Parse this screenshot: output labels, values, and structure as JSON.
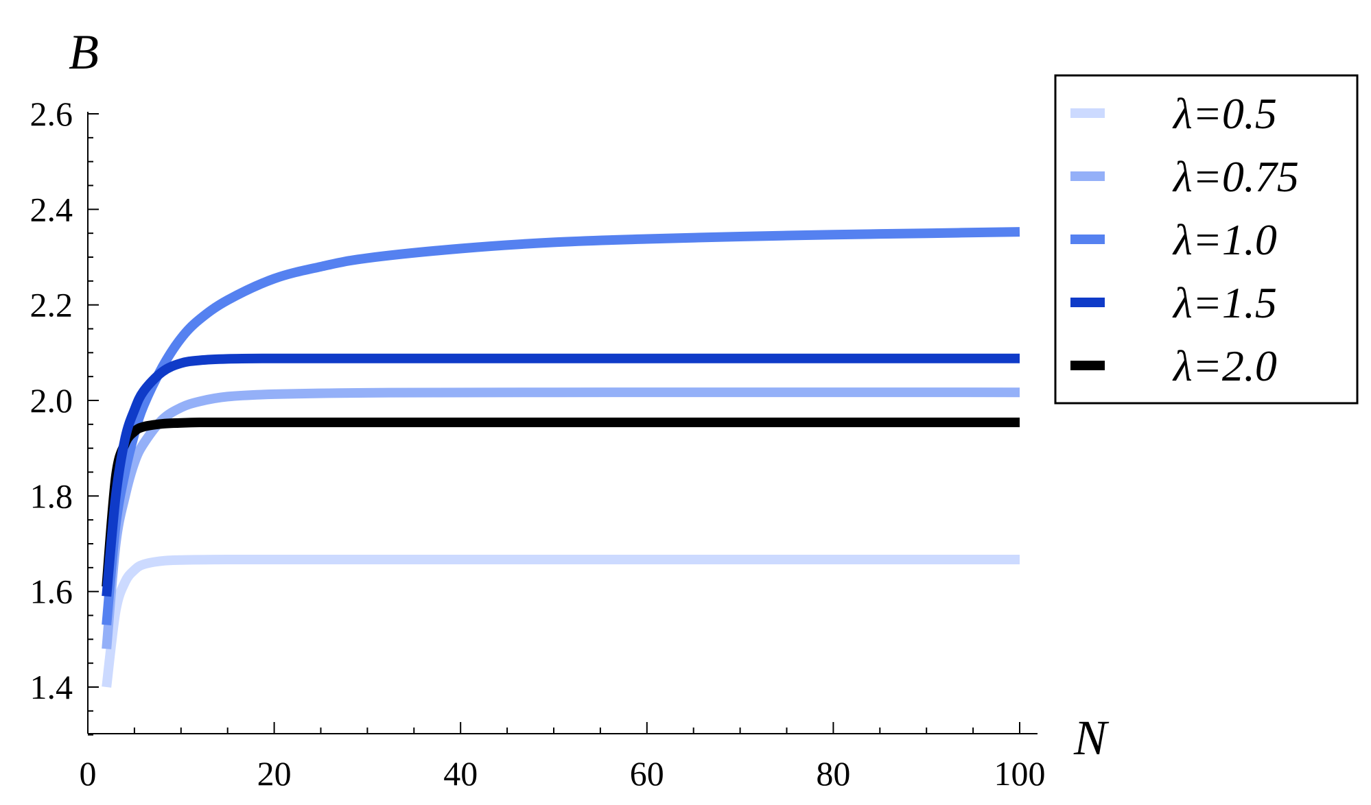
{
  "chart_data": {
    "type": "line",
    "title": "",
    "xlabel": "N",
    "ylabel": "B",
    "xlim": [
      0,
      102
    ],
    "ylim": [
      1.3,
      2.62
    ],
    "x_ticks": [
      "0",
      "20",
      "40",
      "60",
      "80",
      "100"
    ],
    "y_ticks": [
      "1.4",
      "1.6",
      "1.8",
      "2.0",
      "2.2",
      "2.4",
      "2.6"
    ],
    "grid": false,
    "legend_position": "top-right",
    "series": [
      {
        "name": "λ=0.5",
        "color": "#ccdaff",
        "x": [
          2,
          3,
          4,
          5,
          6,
          8,
          10,
          15,
          20,
          30,
          50,
          100
        ],
        "y": [
          1.4,
          1.56,
          1.62,
          1.645,
          1.657,
          1.664,
          1.666,
          1.667,
          1.667,
          1.667,
          1.667,
          1.667
        ]
      },
      {
        "name": "λ=0.75",
        "color": "#94b0f8",
        "x": [
          2,
          3,
          4,
          5,
          6,
          8,
          10,
          12,
          15,
          20,
          30,
          50,
          100
        ],
        "y": [
          1.48,
          1.7,
          1.8,
          1.87,
          1.91,
          1.96,
          1.985,
          1.998,
          2.008,
          2.013,
          2.016,
          2.017,
          2.017
        ]
      },
      {
        "name": "λ=1.0",
        "color": "#5581f0",
        "x": [
          2,
          3,
          4,
          5,
          6,
          8,
          10,
          12,
          15,
          20,
          25,
          30,
          40,
          50,
          60,
          70,
          80,
          90,
          100
        ],
        "y": [
          1.53,
          1.74,
          1.85,
          1.93,
          1.99,
          2.07,
          2.13,
          2.17,
          2.21,
          2.255,
          2.28,
          2.298,
          2.318,
          2.331,
          2.338,
          2.343,
          2.347,
          2.35,
          2.353
        ]
      },
      {
        "name": "λ=1.5",
        "color": "#0f3bc8",
        "x": [
          2,
          3,
          4,
          5,
          6,
          8,
          10,
          12,
          15,
          20,
          30,
          50,
          100
        ],
        "y": [
          1.59,
          1.8,
          1.92,
          1.98,
          2.02,
          2.06,
          2.078,
          2.084,
          2.087,
          2.088,
          2.088,
          2.088,
          2.088
        ]
      },
      {
        "name": "λ=2.0",
        "color": "#000000",
        "x": [
          2,
          3,
          4,
          5,
          6,
          8,
          10,
          12,
          15,
          20,
          30,
          50,
          100
        ],
        "y": [
          1.61,
          1.84,
          1.91,
          1.935,
          1.945,
          1.951,
          1.953,
          1.954,
          1.954,
          1.954,
          1.954,
          1.954,
          1.954
        ]
      }
    ]
  }
}
